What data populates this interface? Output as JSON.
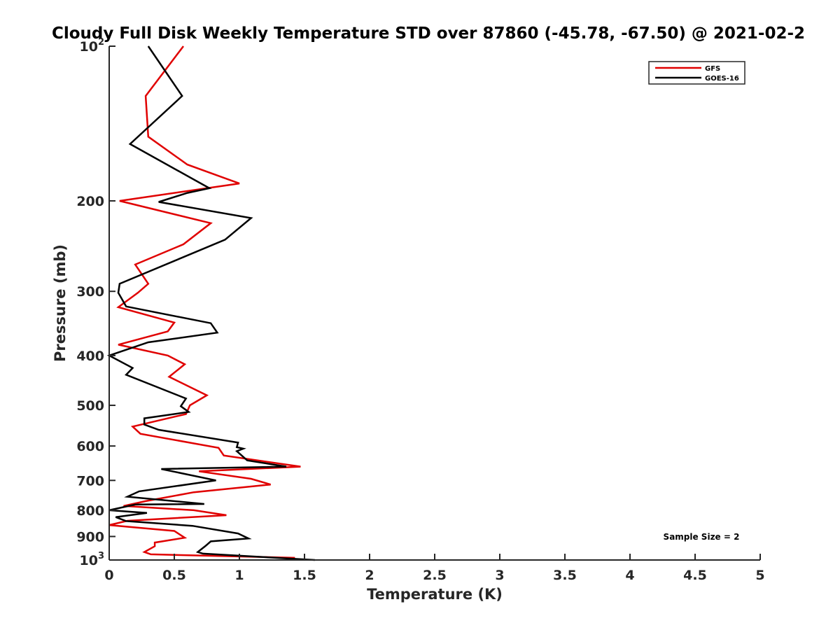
{
  "chart_data": {
    "type": "line",
    "title": "Cloudy Full Disk Weekly Temperature STD over 87860 (-45.78, -67.50) @ 2021-02-2",
    "xlabel": "Temperature (K)",
    "ylabel": "Pressure (mb)",
    "xlim": [
      0,
      5
    ],
    "ylim": [
      100,
      1000
    ],
    "y_scale": "log",
    "y_reversed": true,
    "grid": false,
    "legend_position": "top-right",
    "x_ticks": [
      "0",
      "0.5",
      "1",
      "1.5",
      "2",
      "2.5",
      "3",
      "3.5",
      "4",
      "4.5",
      "5"
    ],
    "y_ticks": [
      {
        "value": 100,
        "base": "10",
        "exp": "2"
      },
      {
        "value": 200,
        "base": "200",
        "exp": ""
      },
      {
        "value": 300,
        "base": "300",
        "exp": ""
      },
      {
        "value": 400,
        "base": "400",
        "exp": ""
      },
      {
        "value": 500,
        "base": "500",
        "exp": ""
      },
      {
        "value": 600,
        "base": "600",
        "exp": ""
      },
      {
        "value": 700,
        "base": "700",
        "exp": ""
      },
      {
        "value": 800,
        "base": "800",
        "exp": ""
      },
      {
        "value": 900,
        "base": "900",
        "exp": ""
      },
      {
        "value": 1000,
        "base": "10",
        "exp": "3"
      }
    ],
    "annotation": "Sample Size = 2",
    "series": [
      {
        "name": "GFS",
        "color": "#e00000",
        "points": [
          [
            0.57,
            100
          ],
          [
            0.28,
            125
          ],
          [
            0.3,
            150
          ],
          [
            0.6,
            170
          ],
          [
            1.0,
            185
          ],
          [
            0.08,
            200
          ],
          [
            0.78,
            221
          ],
          [
            0.57,
            243
          ],
          [
            0.2,
            266
          ],
          [
            0.3,
            290
          ],
          [
            0.22,
            302
          ],
          [
            0.07,
            322
          ],
          [
            0.5,
            345
          ],
          [
            0.45,
            359
          ],
          [
            0.07,
            381
          ],
          [
            0.45,
            400
          ],
          [
            0.58,
            416
          ],
          [
            0.46,
            440
          ],
          [
            0.75,
            478
          ],
          [
            0.62,
            500
          ],
          [
            0.59,
            520
          ],
          [
            0.18,
            550
          ],
          [
            0.24,
            568
          ],
          [
            0.84,
            605
          ],
          [
            0.88,
            626
          ],
          [
            1.47,
            658
          ],
          [
            0.69,
            672
          ],
          [
            1.09,
            695
          ],
          [
            1.24,
            713
          ],
          [
            0.65,
            738
          ],
          [
            0.28,
            768
          ],
          [
            0.11,
            785
          ],
          [
            0.65,
            800
          ],
          [
            0.9,
            818
          ],
          [
            0.14,
            839
          ],
          [
            0.0,
            855
          ],
          [
            0.5,
            878
          ],
          [
            0.58,
            905
          ],
          [
            0.35,
            925
          ],
          [
            0.35,
            940
          ],
          [
            0.27,
            965
          ],
          [
            0.32,
            975
          ],
          [
            1.42,
            990
          ],
          [
            1.42,
            1000
          ]
        ]
      },
      {
        "name": "GOES-16",
        "color": "#000000",
        "points": [
          [
            0.3,
            100
          ],
          [
            0.56,
            125
          ],
          [
            0.16,
            155
          ],
          [
            0.77,
            189
          ],
          [
            0.6,
            193
          ],
          [
            0.38,
            201
          ],
          [
            1.09,
            216
          ],
          [
            0.89,
            238
          ],
          [
            0.08,
            290
          ],
          [
            0.07,
            302
          ],
          [
            0.13,
            321
          ],
          [
            0.78,
            346
          ],
          [
            0.83,
            361
          ],
          [
            0.3,
            377
          ],
          [
            0.0,
            400
          ],
          [
            0.18,
            423
          ],
          [
            0.13,
            436
          ],
          [
            0.59,
            485
          ],
          [
            0.55,
            502
          ],
          [
            0.61,
            515
          ],
          [
            0.27,
            530
          ],
          [
            0.27,
            545
          ],
          [
            0.38,
            558
          ],
          [
            0.99,
            591
          ],
          [
            0.98,
            603
          ],
          [
            1.03,
            607
          ],
          [
            0.98,
            614
          ],
          [
            1.06,
            640
          ],
          [
            1.36,
            658
          ],
          [
            0.4,
            665
          ],
          [
            0.82,
            700
          ],
          [
            0.23,
            735
          ],
          [
            0.14,
            753
          ],
          [
            0.73,
            778
          ],
          [
            0.2,
            780
          ],
          [
            0.0,
            800
          ],
          [
            0.29,
            810
          ],
          [
            0.05,
            825
          ],
          [
            0.13,
            840
          ],
          [
            0.64,
            858
          ],
          [
            0.99,
            888
          ],
          [
            1.07,
            908
          ],
          [
            0.78,
            920
          ],
          [
            0.74,
            939
          ],
          [
            0.68,
            965
          ],
          [
            0.72,
            972
          ],
          [
            1.58,
            1000
          ]
        ]
      }
    ]
  }
}
